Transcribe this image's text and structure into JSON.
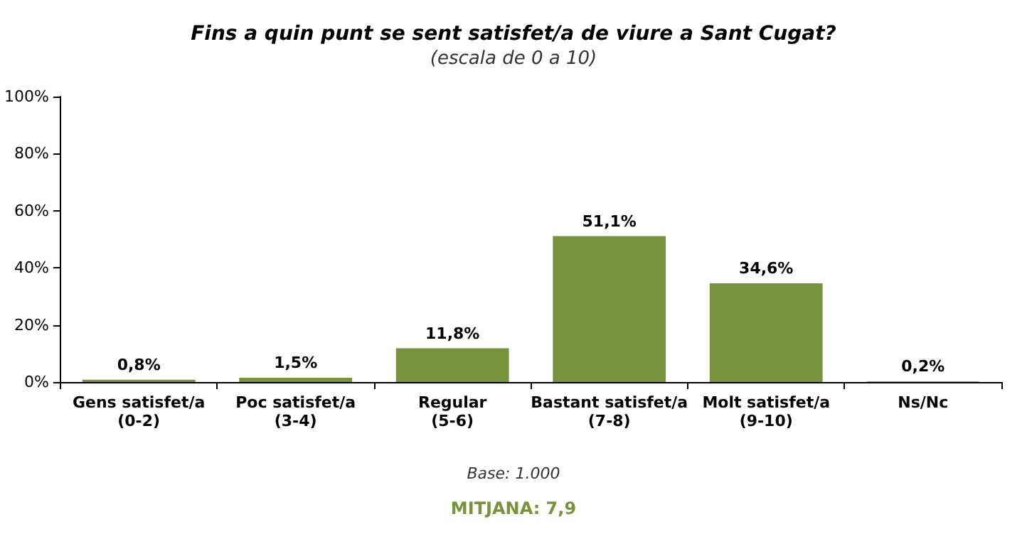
{
  "chart_data": {
    "type": "bar",
    "title": "Fins a quin punt se sent satisfet/a de viure a Sant Cugat?",
    "subtitle": "(escala de 0 a 10)",
    "categories": [
      "Gens satisfet/a\n(0-2)",
      "Poc satisfet/a\n(3-4)",
      "Regular\n(5-6)",
      "Bastant satisfet/a\n(7-8)",
      "Molt satisfet/a\n(9-10)",
      "Ns/Nc"
    ],
    "values": [
      0.8,
      1.5,
      11.8,
      51.1,
      34.6,
      0.2
    ],
    "value_labels": [
      "0,8%",
      "1,5%",
      "11,8%",
      "51,1%",
      "34,6%",
      "0,2%"
    ],
    "color": "#77933c",
    "ylim": [
      0,
      100
    ],
    "yticks": [
      {
        "value": 0,
        "label": "0%"
      },
      {
        "value": 20,
        "label": "20%"
      },
      {
        "value": 40,
        "label": "40%"
      },
      {
        "value": 60,
        "label": "60%"
      },
      {
        "value": 80,
        "label": "80%"
      },
      {
        "value": 100,
        "label": "100%"
      }
    ],
    "annotations": [
      "Base: 1.000",
      "MITJANA: 7,9"
    ]
  }
}
